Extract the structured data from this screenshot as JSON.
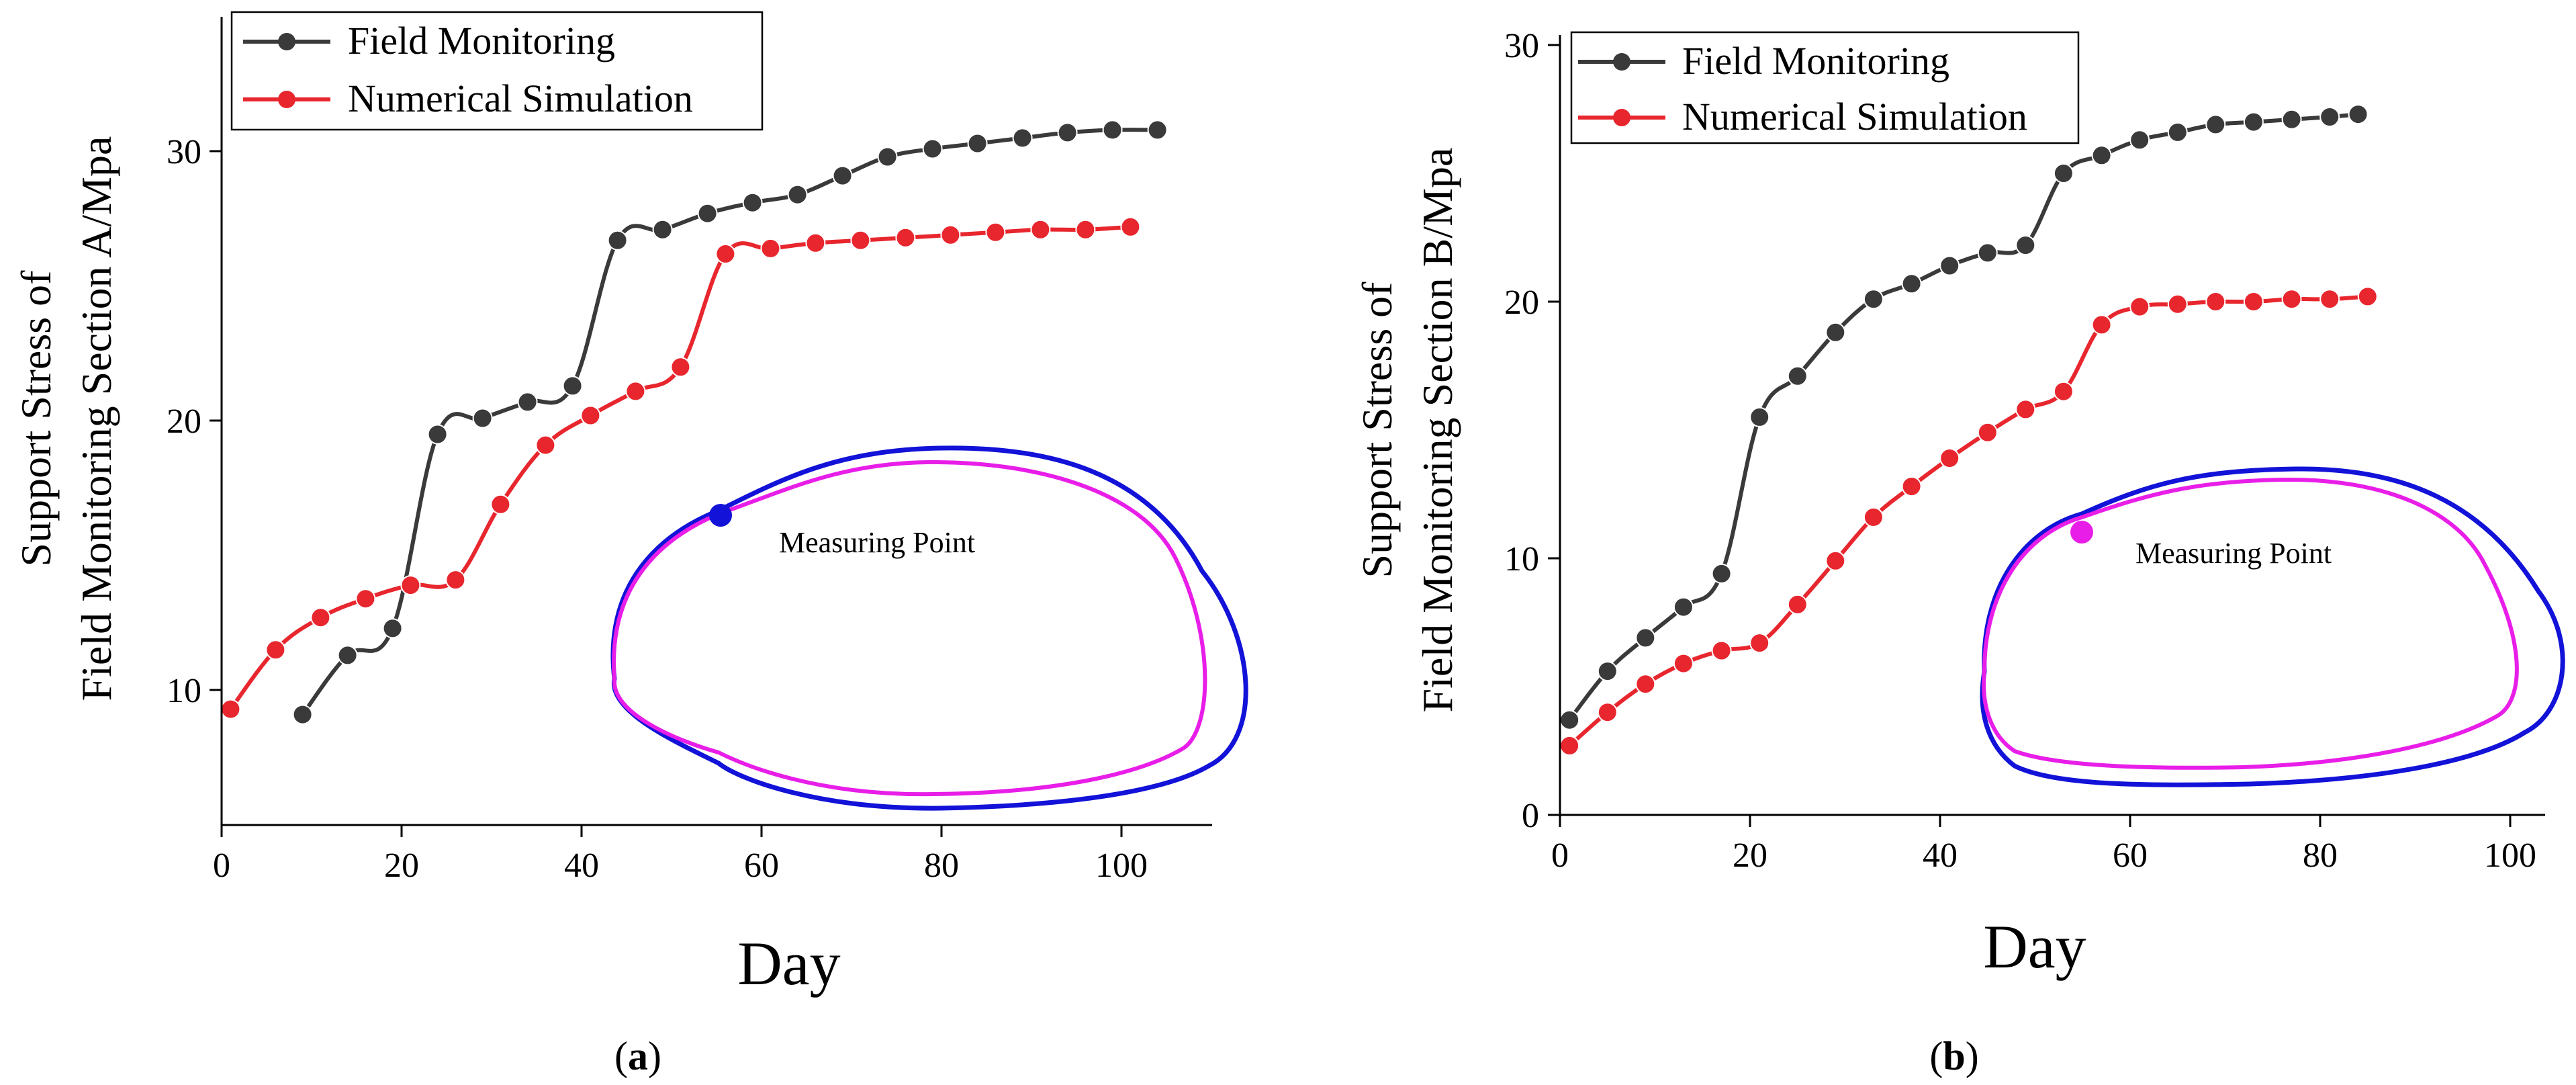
{
  "figure": {
    "panels": [
      {
        "caption_prefix": "(",
        "caption_letter": "a",
        "caption_suffix": ")"
      },
      {
        "caption_prefix": "(",
        "caption_letter": "b",
        "caption_suffix": ")"
      }
    ]
  },
  "colors": {
    "field": "#3a3a3a",
    "simulation": "#e8262e",
    "outer_outline": "#1212d8",
    "inner_outline": "#e81ee8",
    "point_a": "#1212d8",
    "point_b": "#e81ee8"
  },
  "chart_data": [
    {
      "type": "line",
      "panel": "a",
      "xlabel": "Day",
      "ylabel_line1": "Support Stress of",
      "ylabel_line2": "Field Monitoring Section A/Mpa",
      "xlim": [
        0,
        110
      ],
      "ylim": [
        5,
        35
      ],
      "xticks": [
        "0",
        "20",
        "40",
        "60",
        "80",
        "100"
      ],
      "yticks": [
        "10",
        "20",
        "30"
      ],
      "legend_position": "top-left",
      "inset_label": "Measuring Point",
      "series": [
        {
          "name": "Field Monitoring",
          "x": [
            9,
            14,
            19,
            24,
            29,
            34,
            39,
            44,
            49,
            54,
            59,
            64,
            69,
            74,
            79,
            84,
            89,
            94,
            99,
            104
          ],
          "y": [
            9.1,
            11.3,
            12.3,
            19.5,
            20.1,
            20.7,
            21.3,
            26.7,
            27.1,
            27.7,
            28.1,
            28.4,
            29.1,
            29.8,
            30.1,
            30.3,
            30.5,
            30.7,
            30.8,
            30.8
          ]
        },
        {
          "name": "Numerical Simulation",
          "x": [
            1,
            6,
            11,
            16,
            21,
            26,
            31,
            36,
            41,
            46,
            51,
            56,
            61,
            66,
            71,
            76,
            81,
            86,
            91,
            96,
            101
          ],
          "y": [
            9.3,
            11.5,
            12.7,
            13.4,
            13.9,
            14.1,
            16.9,
            19.1,
            20.2,
            21.1,
            22.0,
            26.2,
            26.4,
            26.6,
            26.7,
            26.8,
            26.9,
            27.0,
            27.1,
            27.1,
            27.2
          ]
        }
      ]
    },
    {
      "type": "line",
      "panel": "b",
      "xlabel": "Day",
      "ylabel_line1": "Support Stress of",
      "ylabel_line2": "Field Monitoring Section B/Mpa",
      "xlim": [
        0,
        100
      ],
      "ylim": [
        0,
        30
      ],
      "xticks": [
        "0",
        "20",
        "40",
        "60",
        "80",
        "100"
      ],
      "yticks": [
        "0",
        "10",
        "20",
        "30"
      ],
      "legend_position": "top-left",
      "inset_label": "Measuring Point",
      "series": [
        {
          "name": "Field Monitoring",
          "x": [
            1,
            5,
            9,
            13,
            17,
            21,
            25,
            29,
            33,
            37,
            41,
            45,
            49,
            53,
            57,
            61,
            65,
            69,
            73,
            77,
            81,
            84
          ],
          "y": [
            3.7,
            5.6,
            6.9,
            8.1,
            9.4,
            15.5,
            17.1,
            18.8,
            20.1,
            20.7,
            21.4,
            21.9,
            22.2,
            25.0,
            25.7,
            26.3,
            26.6,
            26.9,
            27.0,
            27.1,
            27.2,
            27.3
          ]
        },
        {
          "name": "Numerical Simulation",
          "x": [
            1,
            5,
            9,
            13,
            17,
            21,
            25,
            29,
            33,
            37,
            41,
            45,
            49,
            53,
            57,
            61,
            65,
            69,
            73,
            77,
            81,
            85
          ],
          "y": [
            2.7,
            4.0,
            5.1,
            5.9,
            6.4,
            6.7,
            8.2,
            9.9,
            11.6,
            12.8,
            13.9,
            14.9,
            15.8,
            16.5,
            19.1,
            19.8,
            19.9,
            20.0,
            20.0,
            20.1,
            20.1,
            20.2
          ]
        }
      ]
    }
  ]
}
